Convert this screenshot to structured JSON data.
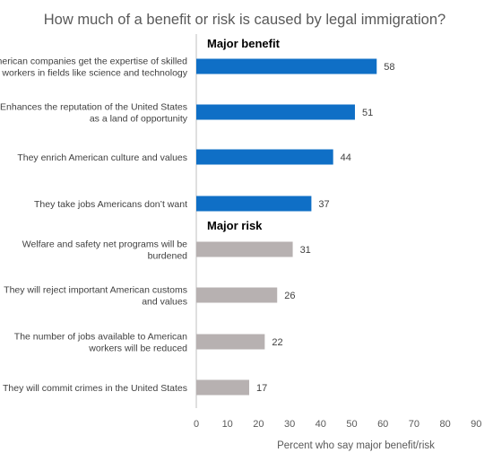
{
  "chart_data": {
    "type": "bar",
    "orientation": "horizontal",
    "title": "How much of a benefit or risk is caused by legal immigration?",
    "xlabel": "Percent who say major benefit/risk",
    "ylabel": "",
    "xlim": [
      0,
      90
    ],
    "x_ticks": [
      0,
      10,
      20,
      30,
      40,
      50,
      60,
      70,
      80,
      90
    ],
    "grid": false,
    "groups": [
      {
        "name": "Major benefit",
        "color": "#0f6fc6",
        "categories": [
          [
            "American companies get the expertise of skilled",
            "workers in fields like science and technology"
          ],
          [
            "Enhances the reputation of the United States",
            "as a land of opportunity"
          ],
          [
            "They enrich American culture and values"
          ],
          [
            "They take jobs Americans don’t want"
          ]
        ],
        "values": [
          58,
          51,
          44,
          37
        ]
      },
      {
        "name": "Major risk",
        "color": "#b7b1b1",
        "categories": [
          [
            "Welfare and safety net programs will be",
            "burdened"
          ],
          [
            "They will reject important American customs",
            "and values"
          ],
          [
            "The number of jobs available to American",
            "workers will be reduced"
          ],
          [
            "They will commit crimes in the United States"
          ]
        ],
        "values": [
          31,
          26,
          22,
          17
        ]
      }
    ]
  }
}
